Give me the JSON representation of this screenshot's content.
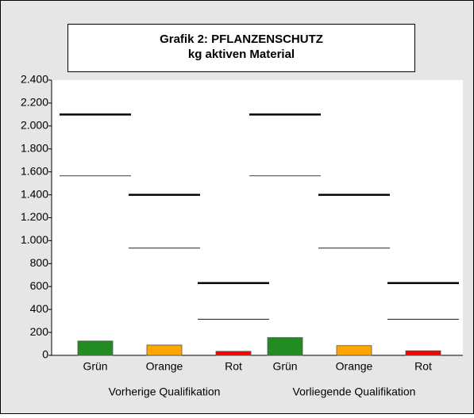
{
  "chart_data": {
    "type": "bar",
    "title": [
      "Grafik 2: PFLANZENSCHUTZ",
      "kg aktiven Material"
    ],
    "categories": [
      "Grün",
      "Orange",
      "Rot",
      "Grün",
      "Orange",
      "Rot"
    ],
    "groups": [
      "Vorherige Qualifikation",
      "Vorliegende Qualifikation"
    ],
    "values": [
      125,
      90,
      35,
      155,
      85,
      40
    ],
    "colors": [
      "#228b22",
      "#ffa500",
      "#ff0000",
      "#228b22",
      "#ffa500",
      "#ff0000"
    ],
    "lines": [
      {
        "style": "thick",
        "values": [
          2100,
          1400,
          630,
          2100,
          1400,
          630
        ]
      },
      {
        "style": "thin",
        "values": [
          1565,
          935,
          315,
          1565,
          935,
          315
        ]
      }
    ],
    "ylim": [
      0,
      2400
    ],
    "yticks": [
      0,
      200,
      400,
      600,
      800,
      {
        "value": 1000,
        "label": "1.000"
      },
      {
        "value": 1200,
        "label": "1.200"
      },
      {
        "value": 1400,
        "label": "1.400"
      },
      {
        "value": 1600,
        "label": "1.600"
      },
      {
        "value": 1800,
        "label": "1.800"
      },
      {
        "value": 2000,
        "label": "2.000"
      },
      {
        "value": 2200,
        "label": "2.200"
      },
      {
        "value": 2400,
        "label": "2.400"
      }
    ]
  }
}
